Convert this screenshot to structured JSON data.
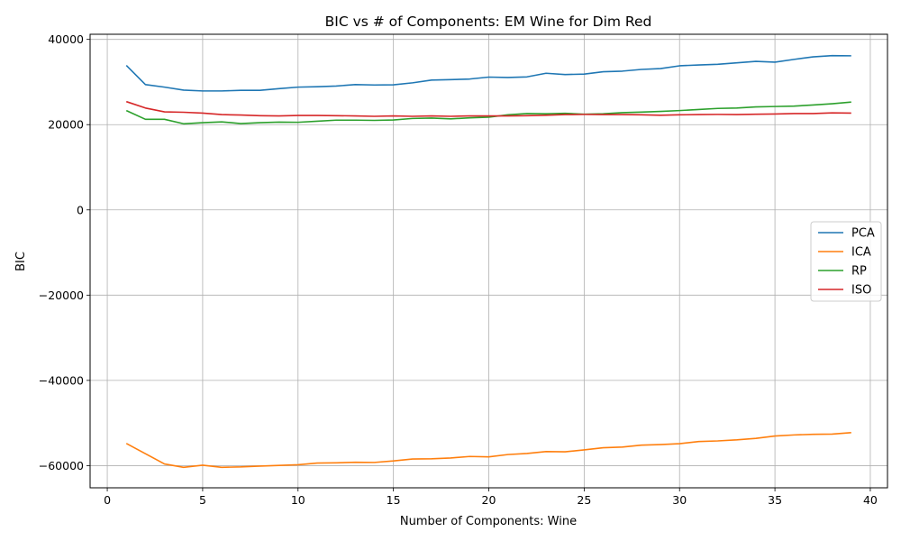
{
  "chart_data": {
    "type": "line",
    "title": "BIC vs # of Components: EM Wine for Dim Red",
    "xlabel": "Number of Components: Wine",
    "ylabel": "BIC",
    "xlim": [
      -0.9,
      40.9
    ],
    "ylim": [
      -65200,
      41200
    ],
    "x_ticks": [
      0,
      5,
      10,
      15,
      20,
      25,
      30,
      35,
      40
    ],
    "y_ticks": [
      -60000,
      -40000,
      -20000,
      0,
      20000,
      40000
    ],
    "y_tick_labels": [
      "−60000",
      "−40000",
      "−20000",
      "0",
      "20000",
      "40000"
    ],
    "grid": true,
    "legend_position": "center-right",
    "x": [
      1,
      2,
      3,
      4,
      5,
      6,
      7,
      8,
      9,
      10,
      11,
      12,
      13,
      14,
      15,
      16,
      17,
      18,
      19,
      20,
      21,
      22,
      23,
      24,
      25,
      26,
      27,
      28,
      29,
      30,
      31,
      32,
      33,
      34,
      35,
      36,
      37,
      38,
      39
    ],
    "series": [
      {
        "name": "PCA",
        "color": "#1f77b4",
        "values": [
          33900,
          29400,
          28800,
          28100,
          27900,
          27900,
          28050,
          28050,
          28450,
          28800,
          28900,
          29050,
          29400,
          29300,
          29350,
          29800,
          30450,
          30550,
          30700,
          31150,
          31050,
          31200,
          32050,
          31750,
          31850,
          32400,
          32550,
          32950,
          33150,
          33800,
          34000,
          34150,
          34500,
          34850,
          34650,
          35300,
          35900,
          36200,
          36150
        ]
      },
      {
        "name": "ICA",
        "color": "#ff7f0e",
        "values": [
          -54800,
          -57200,
          -59600,
          -60400,
          -59900,
          -60400,
          -60300,
          -60100,
          -59950,
          -59800,
          -59400,
          -59350,
          -59200,
          -59250,
          -58900,
          -58450,
          -58400,
          -58200,
          -57850,
          -57950,
          -57400,
          -57150,
          -56700,
          -56750,
          -56300,
          -55800,
          -55650,
          -55200,
          -55050,
          -54850,
          -54350,
          -54200,
          -53950,
          -53600,
          -53050,
          -52800,
          -52650,
          -52600,
          -52250
        ]
      },
      {
        "name": "RP",
        "color": "#2ca02c",
        "values": [
          23300,
          21250,
          21250,
          20200,
          20450,
          20650,
          20250,
          20450,
          20600,
          20550,
          20800,
          21050,
          21050,
          21000,
          21100,
          21450,
          21550,
          21350,
          21600,
          21750,
          22300,
          22600,
          22550,
          22650,
          22450,
          22550,
          22800,
          22950,
          23100,
          23300,
          23550,
          23800,
          23900,
          24150,
          24250,
          24350,
          24600,
          24900,
          25300
        ]
      },
      {
        "name": "ISO",
        "color": "#d62728",
        "values": [
          25400,
          23900,
          23000,
          22900,
          22700,
          22350,
          22250,
          22100,
          22050,
          22150,
          22150,
          22100,
          22050,
          21950,
          22050,
          21950,
          22050,
          21950,
          22050,
          22050,
          22050,
          22100,
          22200,
          22350,
          22400,
          22350,
          22350,
          22300,
          22200,
          22300,
          22350,
          22400,
          22350,
          22450,
          22500,
          22600,
          22600,
          22750,
          22700
        ]
      }
    ]
  }
}
